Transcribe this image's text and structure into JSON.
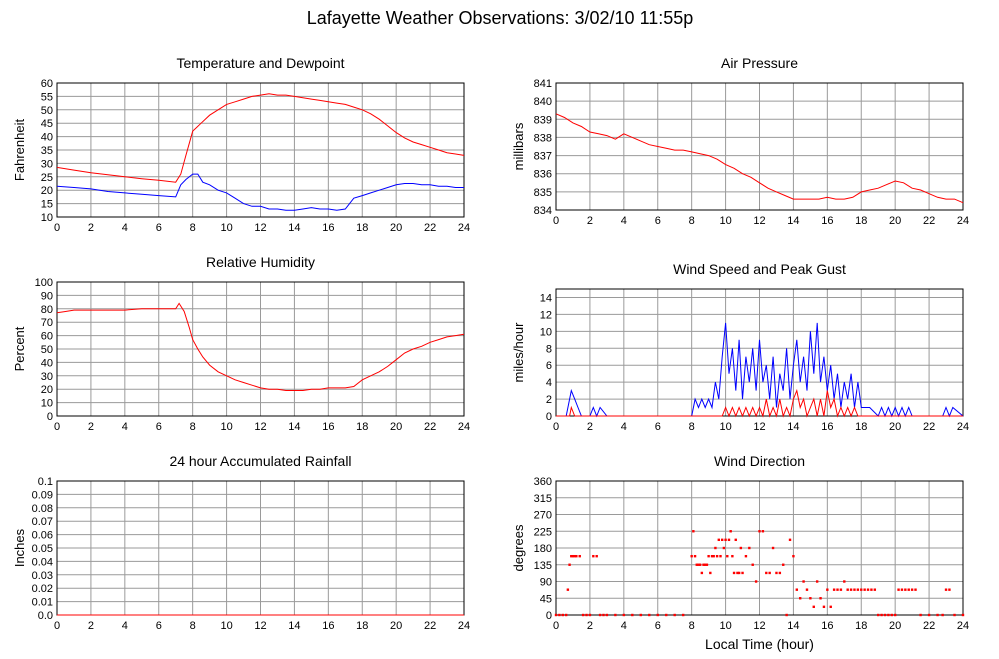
{
  "page": {
    "title": "Lafayette Weather Observations: 3/02/10 11:55p"
  },
  "colors": {
    "red": "#ff0000",
    "blue": "#0000ff",
    "grid": "#9a9a9a"
  },
  "chart_data": [
    {
      "id": "temp",
      "type": "line",
      "title": "Temperature and Dewpoint",
      "xlabel": "",
      "ylabel": "Fahrenheit",
      "xlim": [
        0,
        24
      ],
      "ylim": [
        10,
        60
      ],
      "xticks": [
        0,
        2,
        4,
        6,
        8,
        10,
        12,
        14,
        16,
        18,
        20,
        22,
        24
      ],
      "yticks": [
        10,
        15,
        20,
        25,
        30,
        35,
        40,
        45,
        50,
        55,
        60
      ],
      "series": [
        {
          "color": "#ff0000",
          "x": [
            0,
            1,
            2,
            3,
            4,
            5,
            6,
            7,
            7.3,
            7.6,
            8,
            8.5,
            9,
            9.5,
            10,
            10.5,
            11,
            11.5,
            12,
            12.5,
            13,
            13.5,
            14,
            14.5,
            15,
            15.5,
            16,
            16.5,
            17,
            17.5,
            18,
            18.5,
            19,
            19.5,
            20,
            20.5,
            21,
            21.5,
            22,
            22.5,
            23,
            23.5,
            24
          ],
          "y": [
            28.5,
            27.5,
            26.5,
            25.8,
            25,
            24.3,
            23.7,
            23,
            26,
            33,
            42,
            45,
            48,
            50,
            52,
            53,
            54,
            55,
            55.5,
            56,
            55.5,
            55.5,
            55,
            54.5,
            54,
            53.5,
            53,
            52.5,
            52,
            51,
            50,
            48.5,
            46.5,
            44,
            41.5,
            39.5,
            38,
            37,
            36,
            35,
            34,
            33.5,
            33
          ]
        },
        {
          "color": "#0000ff",
          "x": [
            0,
            1,
            2,
            3,
            4,
            5,
            6,
            7,
            7.3,
            7.6,
            8,
            8.3,
            8.6,
            9,
            9.5,
            10,
            10.5,
            11,
            11.5,
            12,
            12.5,
            13,
            13.5,
            14,
            14.5,
            15,
            15.5,
            16,
            16.5,
            17,
            17.5,
            18,
            18.5,
            19,
            19.5,
            20,
            20.5,
            21,
            21.5,
            22,
            22.5,
            23,
            23.5,
            24
          ],
          "y": [
            21.5,
            21,
            20.5,
            19.5,
            19,
            18.5,
            18,
            17.5,
            22,
            24,
            26,
            26,
            23,
            22,
            20,
            19,
            17,
            15,
            14,
            14,
            13,
            13,
            12.5,
            12.5,
            13,
            13.5,
            13,
            13,
            12.5,
            13,
            17,
            18,
            19,
            20,
            21,
            22,
            22.5,
            22.5,
            22,
            22,
            21.5,
            21.5,
            21,
            21
          ]
        }
      ]
    },
    {
      "id": "press",
      "type": "line",
      "title": "Air Pressure",
      "xlabel": "",
      "ylabel": "millibars",
      "xlim": [
        0,
        24
      ],
      "ylim": [
        834,
        841
      ],
      "xticks": [
        0,
        2,
        4,
        6,
        8,
        10,
        12,
        14,
        16,
        18,
        20,
        22,
        24
      ],
      "yticks": [
        834,
        835,
        836,
        837,
        838,
        839,
        840,
        841
      ],
      "series": [
        {
          "color": "#ff0000",
          "x": [
            0,
            0.5,
            1,
            1.5,
            2,
            2.5,
            3,
            3.5,
            4,
            4.5,
            5,
            5.5,
            6,
            6.5,
            7,
            7.5,
            8,
            8.5,
            9,
            9.5,
            10,
            10.5,
            11,
            11.5,
            12,
            12.5,
            13,
            13.5,
            14,
            14.5,
            15,
            15.5,
            16,
            16.5,
            17,
            17.5,
            18,
            18.5,
            19,
            19.5,
            20,
            20.5,
            21,
            21.5,
            22,
            22.5,
            23,
            23.5,
            24
          ],
          "y": [
            839.3,
            839.1,
            838.8,
            838.6,
            838.3,
            838.2,
            838.1,
            837.9,
            838.2,
            838.0,
            837.8,
            837.6,
            837.5,
            837.4,
            837.3,
            837.3,
            837.2,
            837.1,
            837.0,
            836.8,
            836.5,
            836.3,
            836.0,
            835.8,
            835.5,
            835.2,
            835.0,
            834.8,
            834.6,
            834.6,
            834.6,
            834.6,
            834.7,
            834.6,
            834.6,
            834.7,
            835.0,
            835.1,
            835.2,
            835.4,
            835.6,
            835.5,
            835.2,
            835.1,
            834.9,
            834.7,
            834.6,
            834.6,
            834.4
          ]
        }
      ]
    },
    {
      "id": "rh",
      "type": "line",
      "title": "Relative Humidity",
      "xlabel": "",
      "ylabel": "Percent",
      "xlim": [
        0,
        24
      ],
      "ylim": [
        0,
        100
      ],
      "xticks": [
        0,
        2,
        4,
        6,
        8,
        10,
        12,
        14,
        16,
        18,
        20,
        22,
        24
      ],
      "yticks": [
        0,
        10,
        20,
        30,
        40,
        50,
        60,
        70,
        80,
        90,
        100
      ],
      "series": [
        {
          "color": "#ff0000",
          "x": [
            0,
            0.5,
            1,
            2,
            3,
            4,
            5,
            6,
            7,
            7.2,
            7.5,
            7.8,
            8,
            8.3,
            8.6,
            9,
            9.5,
            10,
            10.5,
            11,
            11.5,
            12,
            12.5,
            13,
            13.5,
            14,
            14.5,
            15,
            15.5,
            16,
            16.5,
            17,
            17.5,
            18,
            18.5,
            19,
            19.5,
            20,
            20.5,
            21,
            21.5,
            22,
            22.5,
            23,
            23.5,
            24
          ],
          "y": [
            77,
            78,
            79,
            79,
            79,
            79,
            80,
            80,
            80,
            84,
            78,
            66,
            57,
            50,
            44,
            38,
            33,
            30,
            27,
            25,
            23,
            21,
            20,
            20,
            19,
            19,
            19,
            20,
            20,
            21,
            21,
            21,
            22,
            27,
            30,
            33,
            37,
            42,
            47,
            50,
            52,
            55,
            57,
            59,
            60,
            61
          ]
        }
      ]
    },
    {
      "id": "wind",
      "type": "line",
      "title": "Wind Speed and Peak Gust",
      "xlabel": "",
      "ylabel": "miles/hour",
      "xlim": [
        0,
        24
      ],
      "ylim": [
        0,
        15
      ],
      "xticks": [
        0,
        2,
        4,
        6,
        8,
        10,
        12,
        14,
        16,
        18,
        20,
        22,
        24
      ],
      "yticks": [
        0,
        2,
        4,
        6,
        8,
        10,
        12,
        14
      ],
      "series": [
        {
          "color": "#0000ff",
          "x": [
            0,
            0.6,
            0.8,
            0.9,
            1.1,
            1.3,
            1.5,
            2,
            2.2,
            2.4,
            2.6,
            3,
            8,
            8.2,
            8.4,
            8.6,
            8.8,
            9,
            9.2,
            9.4,
            9.6,
            9.8,
            10,
            10.2,
            10.4,
            10.6,
            10.8,
            11,
            11.2,
            11.4,
            11.6,
            11.8,
            12,
            12.2,
            12.4,
            12.6,
            12.8,
            13,
            13.2,
            13.4,
            13.6,
            13.8,
            14,
            14.2,
            14.4,
            14.6,
            14.8,
            15,
            15.2,
            15.4,
            15.6,
            15.8,
            16,
            16.2,
            16.4,
            16.6,
            16.8,
            17,
            17.2,
            17.4,
            17.6,
            17.8,
            18,
            18.5,
            19,
            19.2,
            19.4,
            19.6,
            19.8,
            20,
            20.2,
            20.4,
            20.6,
            20.8,
            21,
            21.5,
            22,
            22.8,
            23,
            23.2,
            23.4,
            24
          ],
          "y": [
            0,
            0,
            2,
            3,
            2,
            1,
            0,
            0,
            1,
            0,
            1,
            0,
            0,
            2,
            1,
            2,
            1,
            2,
            1,
            4,
            2,
            7,
            11,
            5,
            8,
            3,
            9,
            2,
            7,
            4,
            8,
            3,
            9,
            4,
            6,
            2,
            7,
            1,
            5,
            3,
            8,
            2,
            6,
            9,
            4,
            7,
            3,
            10,
            5,
            11,
            4,
            7,
            3,
            6,
            2,
            5,
            1,
            4,
            2,
            5,
            1,
            4,
            1,
            1,
            0,
            1,
            0,
            1,
            0,
            1,
            0,
            1,
            0,
            1,
            0,
            0,
            0,
            0,
            1,
            0,
            1,
            0
          ]
        },
        {
          "color": "#ff0000",
          "x": [
            0,
            0.8,
            0.9,
            1.1,
            1.3,
            8,
            9.6,
            9.8,
            10,
            10.2,
            10.4,
            10.6,
            10.8,
            11,
            11.2,
            11.4,
            11.6,
            11.8,
            12,
            12.2,
            12.4,
            12.6,
            12.8,
            13,
            13.2,
            13.4,
            13.6,
            13.8,
            14,
            14.2,
            14.4,
            14.6,
            14.8,
            15,
            15.2,
            15.4,
            15.6,
            15.8,
            16,
            16.2,
            16.4,
            16.6,
            16.8,
            17,
            17.2,
            17.4,
            17.6,
            17.8,
            18,
            24
          ],
          "y": [
            0,
            0,
            1,
            0,
            0,
            0,
            0,
            0,
            1,
            0,
            1,
            0,
            1,
            0,
            1,
            0,
            1,
            0,
            1,
            0,
            2,
            0,
            1,
            0,
            2,
            0,
            1,
            0,
            2,
            3,
            1,
            2,
            0,
            1,
            2,
            0,
            2,
            0,
            3,
            1,
            2,
            0,
            1,
            0,
            1,
            0,
            1,
            0,
            0,
            0
          ]
        }
      ]
    },
    {
      "id": "rain",
      "type": "line",
      "title": "24 hour Accumulated Rainfall",
      "xlabel": "",
      "ylabel": "Inches",
      "xlim": [
        0,
        24
      ],
      "ylim": [
        0,
        0.1
      ],
      "xticks": [
        0,
        2,
        4,
        6,
        8,
        10,
        12,
        14,
        16,
        18,
        20,
        22,
        24
      ],
      "yticks": [
        0.0,
        0.01,
        0.02,
        0.03,
        0.04,
        0.05,
        0.06,
        0.07,
        0.08,
        0.09,
        0.1
      ],
      "ytick_labels": [
        "0.0",
        "0.01",
        "0.02",
        "0.03",
        "0.04",
        "0.05",
        "0.06",
        "0.07",
        "0.08",
        "0.09",
        "0.1"
      ],
      "series": [
        {
          "color": "#ff0000",
          "x": [
            0,
            24
          ],
          "y": [
            0,
            0
          ]
        }
      ]
    },
    {
      "id": "dir",
      "type": "scatter",
      "title": "Wind Direction",
      "xlabel": "Local Time (hour)",
      "ylabel": "degrees",
      "xlim": [
        0,
        24
      ],
      "ylim": [
        0,
        360
      ],
      "xticks": [
        0,
        2,
        4,
        6,
        8,
        10,
        12,
        14,
        16,
        18,
        20,
        22,
        24
      ],
      "yticks": [
        0,
        45,
        90,
        135,
        180,
        225,
        270,
        315,
        360
      ],
      "series": [
        {
          "color": "#ff0000",
          "x": [
            0,
            0.2,
            0.4,
            0.6,
            0.7,
            0.8,
            0.9,
            1.0,
            1.1,
            1.2,
            1.4,
            1.6,
            1.8,
            2.0,
            2.2,
            2.4,
            2.6,
            2.8,
            3.0,
            3.5,
            4.0,
            4.5,
            5.0,
            5.5,
            6.0,
            6.5,
            7.0,
            7.5,
            8.0,
            8.1,
            8.2,
            8.3,
            8.4,
            8.5,
            8.6,
            8.7,
            8.8,
            8.9,
            9.0,
            9.1,
            9.2,
            9.3,
            9.4,
            9.5,
            9.6,
            9.7,
            9.8,
            9.9,
            10.0,
            10.1,
            10.2,
            10.3,
            10.4,
            10.5,
            10.6,
            10.7,
            10.8,
            10.9,
            11.0,
            11.2,
            11.4,
            11.6,
            11.8,
            12.0,
            12.2,
            12.4,
            12.6,
            12.8,
            13.0,
            13.2,
            13.4,
            13.6,
            13.8,
            14.0,
            14.2,
            14.4,
            14.6,
            14.8,
            15.0,
            15.2,
            15.4,
            15.6,
            15.8,
            16.0,
            16.2,
            16.4,
            16.6,
            16.8,
            17.0,
            17.2,
            17.4,
            17.6,
            17.8,
            18.0,
            18.2,
            18.4,
            18.6,
            18.8,
            19.0,
            19.2,
            19.4,
            19.6,
            19.8,
            20.0,
            20.2,
            20.4,
            20.6,
            20.8,
            21.0,
            21.2,
            21.5,
            22.0,
            22.5,
            22.8,
            23.0,
            23.2,
            23.5,
            24.0
          ],
          "y": [
            0,
            0,
            0,
            0,
            68,
            135,
            158,
            158,
            158,
            158,
            158,
            0,
            0,
            0,
            158,
            158,
            0,
            0,
            0,
            0,
            0,
            0,
            0,
            0,
            0,
            0,
            0,
            0,
            158,
            225,
            158,
            135,
            135,
            135,
            113,
            135,
            135,
            135,
            158,
            113,
            158,
            158,
            180,
            158,
            202,
            158,
            202,
            180,
            202,
            158,
            202,
            225,
            158,
            113,
            202,
            113,
            113,
            180,
            113,
            158,
            180,
            135,
            90,
            225,
            225,
            113,
            113,
            180,
            113,
            113,
            135,
            0,
            202,
            158,
            68,
            45,
            90,
            68,
            45,
            22,
            90,
            45,
            22,
            68,
            22,
            68,
            68,
            68,
            90,
            68,
            68,
            68,
            68,
            68,
            68,
            68,
            68,
            68,
            0,
            0,
            0,
            0,
            0,
            0,
            68,
            68,
            68,
            68,
            68,
            68,
            0,
            0,
            0,
            0,
            68,
            68,
            0,
            0
          ]
        }
      ]
    }
  ]
}
